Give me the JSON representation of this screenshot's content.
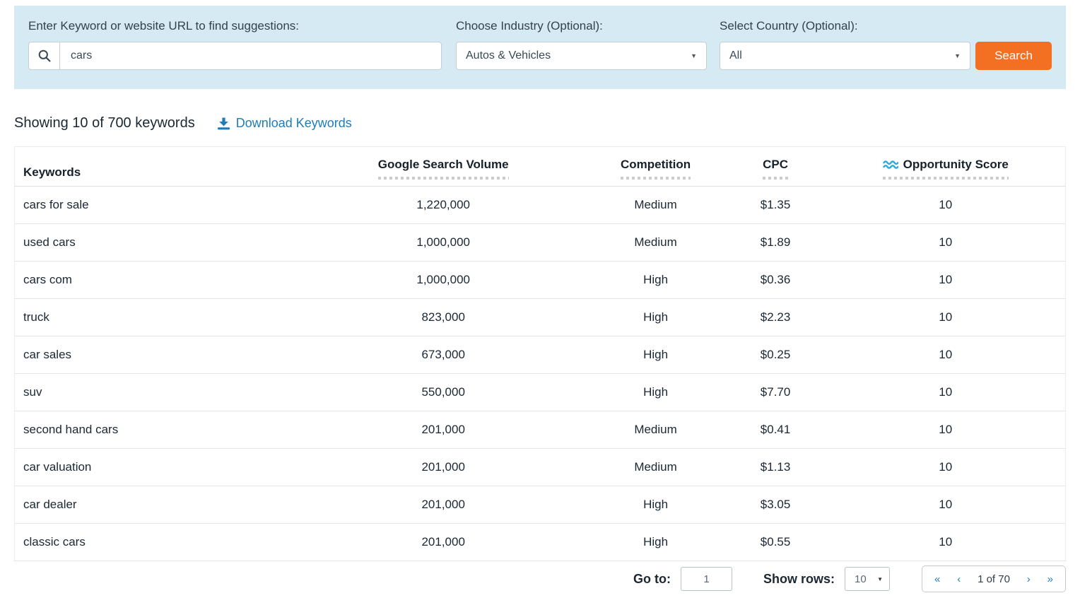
{
  "search_panel": {
    "keyword_label": "Enter Keyword or website URL to find suggestions:",
    "keyword_value": "cars",
    "industry_label": "Choose Industry (Optional):",
    "industry_value": "Autos & Vehicles",
    "country_label": "Select Country (Optional):",
    "country_value": "All",
    "search_button_label": "Search"
  },
  "results_bar": {
    "showing_text": "Showing 10 of 700 keywords",
    "download_label": "Download Keywords"
  },
  "table": {
    "columns": [
      "Keywords",
      "Google Search Volume",
      "Competition",
      "CPC",
      "Opportunity Score"
    ],
    "rows": [
      {
        "keyword": "cars for sale",
        "volume": "1,220,000",
        "competition": "Medium",
        "cpc": "$1.35",
        "score": "10"
      },
      {
        "keyword": "used cars",
        "volume": "1,000,000",
        "competition": "Medium",
        "cpc": "$1.89",
        "score": "10"
      },
      {
        "keyword": "cars com",
        "volume": "1,000,000",
        "competition": "High",
        "cpc": "$0.36",
        "score": "10"
      },
      {
        "keyword": "truck",
        "volume": "823,000",
        "competition": "High",
        "cpc": "$2.23",
        "score": "10"
      },
      {
        "keyword": "car sales",
        "volume": "673,000",
        "competition": "High",
        "cpc": "$0.25",
        "score": "10"
      },
      {
        "keyword": "suv",
        "volume": "550,000",
        "competition": "High",
        "cpc": "$7.70",
        "score": "10"
      },
      {
        "keyword": "second hand cars",
        "volume": "201,000",
        "competition": "Medium",
        "cpc": "$0.41",
        "score": "10"
      },
      {
        "keyword": "car valuation",
        "volume": "201,000",
        "competition": "Medium",
        "cpc": "$1.13",
        "score": "10"
      },
      {
        "keyword": "car dealer",
        "volume": "201,000",
        "competition": "High",
        "cpc": "$3.05",
        "score": "10"
      },
      {
        "keyword": "classic cars",
        "volume": "201,000",
        "competition": "High",
        "cpc": "$0.55",
        "score": "10"
      }
    ]
  },
  "footer": {
    "goto_label": "Go to:",
    "goto_value": "1",
    "show_rows_label": "Show rows:",
    "show_rows_value": "10",
    "pagination": {
      "first": "«",
      "prev": "‹",
      "current": "1 of 70",
      "next": "›",
      "last": "»"
    }
  },
  "icons": {
    "select_caret": "▼"
  },
  "colors": {
    "panel_bg": "#d6eaf4",
    "accent_orange": "#f36f21",
    "link_blue": "#1d7db9",
    "wave_icon_blue": "#29abe2"
  }
}
